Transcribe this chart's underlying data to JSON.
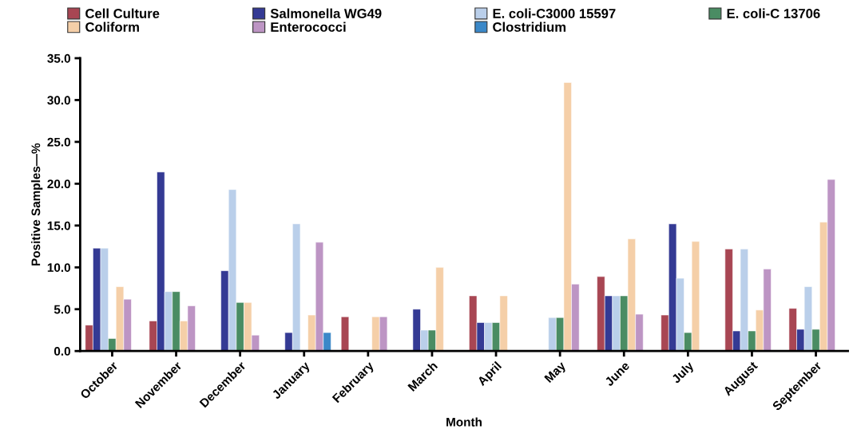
{
  "chart_data": {
    "type": "bar",
    "xlabel": "Month",
    "ylabel": "Positive Samples—%",
    "categories": [
      "October",
      "November",
      "December",
      "January",
      "February",
      "March",
      "April",
      "May",
      "June",
      "July",
      "August",
      "September"
    ],
    "series": [
      {
        "name": "Cell Culture",
        "color": "#a84653",
        "values": [
          3.1,
          3.6,
          null,
          null,
          4.1,
          null,
          6.6,
          null,
          8.9,
          4.3,
          12.2,
          5.1
        ]
      },
      {
        "name": "Salmonella WG49",
        "color": "#343a94",
        "values": [
          12.3,
          21.4,
          9.6,
          2.2,
          null,
          5.0,
          3.4,
          null,
          6.6,
          15.2,
          2.4,
          2.6
        ]
      },
      {
        "name": "E. coli-C3000 15597",
        "color": "#bacfea",
        "values": [
          12.3,
          7.1,
          19.3,
          15.2,
          null,
          2.5,
          3.4,
          4.0,
          6.6,
          8.7,
          12.2,
          7.7
        ]
      },
      {
        "name": "E. coli-C 13706",
        "color": "#4a8c63",
        "values": [
          1.5,
          7.1,
          5.8,
          null,
          null,
          2.5,
          3.4,
          4.0,
          6.6,
          2.2,
          2.4,
          2.6
        ]
      },
      {
        "name": "Coliform",
        "color": "#f5cfa8",
        "values": [
          7.7,
          3.6,
          5.8,
          4.3,
          4.1,
          10.0,
          6.6,
          32.1,
          13.4,
          13.1,
          4.9,
          15.4
        ]
      },
      {
        "name": "Enterococci",
        "color": "#bd95c4",
        "values": [
          6.2,
          5.4,
          1.9,
          13.0,
          4.1,
          null,
          null,
          8.0,
          4.4,
          null,
          9.8,
          20.5
        ]
      },
      {
        "name": "Clostridium",
        "color": "#3b88c8",
        "values": [
          null,
          null,
          null,
          2.2,
          null,
          null,
          null,
          null,
          null,
          null,
          null,
          null
        ]
      }
    ],
    "ylim": [
      0,
      35
    ],
    "yticks": [
      {
        "value": 0,
        "label": "0.0"
      },
      {
        "value": 5,
        "label": "5.0"
      },
      {
        "value": 10,
        "label": "10.0"
      },
      {
        "value": 15,
        "label": "15.0"
      },
      {
        "value": 20,
        "label": "20.0"
      },
      {
        "value": 25,
        "label": "25.0"
      },
      {
        "value": 30,
        "label": "30.0"
      },
      {
        "value": 35,
        "label": "35.0"
      }
    ],
    "grid": false,
    "legend": "top"
  }
}
